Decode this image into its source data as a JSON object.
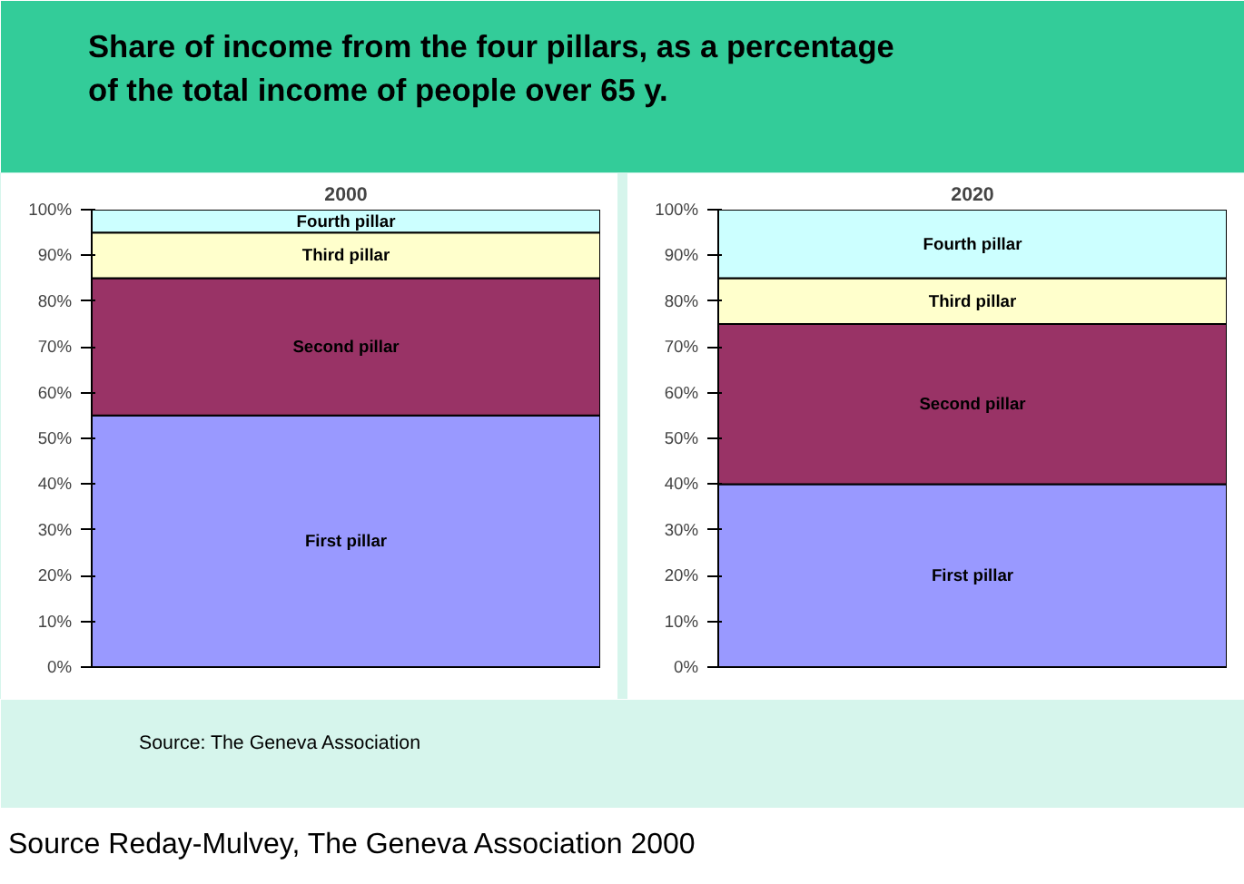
{
  "chart_data": [
    {
      "type": "bar",
      "title": "2000",
      "categories": [
        null
      ],
      "stacked": true,
      "ylim": [
        0,
        100
      ],
      "yticks": [
        {
          "value": 0,
          "label": "0%"
        },
        {
          "value": 10,
          "label": "10%"
        },
        {
          "value": 20,
          "label": "20%"
        },
        {
          "value": 30,
          "label": "30%"
        },
        {
          "value": 40,
          "label": "40%"
        },
        {
          "value": 50,
          "label": "50%"
        },
        {
          "value": 60,
          "label": "60%"
        },
        {
          "value": 70,
          "label": "70%"
        },
        {
          "value": 80,
          "label": "80%"
        },
        {
          "value": 90,
          "label": "90%"
        },
        {
          "value": 100,
          "label": "100%"
        }
      ],
      "series": [
        {
          "name": "First pillar",
          "color": "#9999ff",
          "values": [
            55
          ]
        },
        {
          "name": "Second pillar",
          "color": "#993366",
          "values": [
            30
          ]
        },
        {
          "name": "Third pillar",
          "color": "#ffffcc",
          "values": [
            10
          ]
        },
        {
          "name": "Fourth pillar",
          "color": "#ccffff",
          "values": [
            5
          ]
        }
      ]
    },
    {
      "type": "bar",
      "title": "2020",
      "categories": [
        null
      ],
      "stacked": true,
      "ylim": [
        0,
        100
      ],
      "yticks": [
        {
          "value": 0,
          "label": "0%"
        },
        {
          "value": 10,
          "label": "10%"
        },
        {
          "value": 20,
          "label": "20%"
        },
        {
          "value": 30,
          "label": "30%"
        },
        {
          "value": 40,
          "label": "40%"
        },
        {
          "value": 50,
          "label": "50%"
        },
        {
          "value": 60,
          "label": "60%"
        },
        {
          "value": 70,
          "label": "70%"
        },
        {
          "value": 80,
          "label": "80%"
        },
        {
          "value": 90,
          "label": "90%"
        },
        {
          "value": 100,
          "label": "100%"
        }
      ],
      "series": [
        {
          "name": "First pillar",
          "color": "#9999ff",
          "values": [
            40
          ]
        },
        {
          "name": "Second pillar",
          "color": "#993366",
          "values": [
            35
          ]
        },
        {
          "name": "Third pillar",
          "color": "#ffffcc",
          "values": [
            10
          ]
        },
        {
          "name": "Fourth pillar",
          "color": "#ccffff",
          "values": [
            15
          ]
        }
      ]
    },
    {
      "type": "other",
      "title": "Share of income from the four pillars, as a percentage of the total income of people over 65 y.",
      "annotations": [
        "Source: The Geneva Association",
        "Source Reday-Mulvey, The Geneva Association 2000"
      ]
    }
  ]
}
